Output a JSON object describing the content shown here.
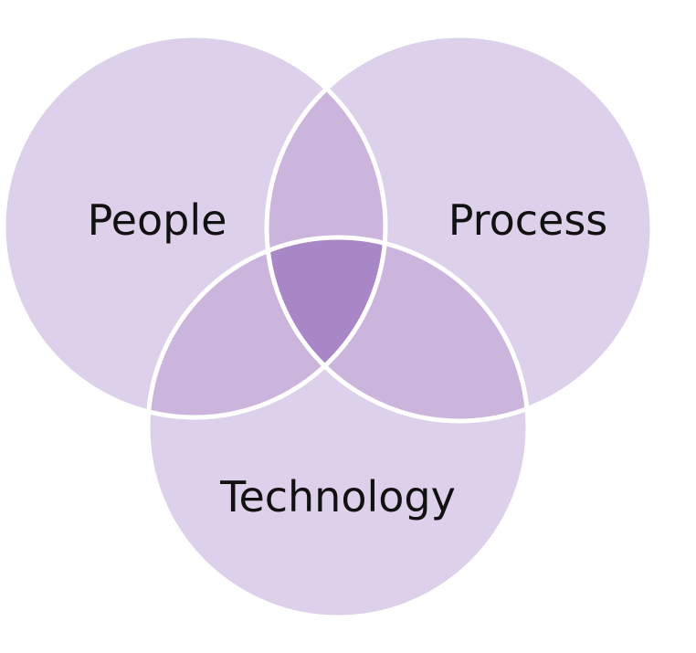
{
  "diagram": {
    "type": "venn",
    "sets": [
      {
        "id": "people",
        "label": "People"
      },
      {
        "id": "process",
        "label": "Process"
      },
      {
        "id": "technology",
        "label": "Technology"
      }
    ]
  },
  "colors": {
    "circle_fill": "#ddd0ea",
    "pair_overlap": "#ccb5dd",
    "triple_overlap": "#a986c5",
    "outline": "#ffffff",
    "label": "#111111"
  }
}
